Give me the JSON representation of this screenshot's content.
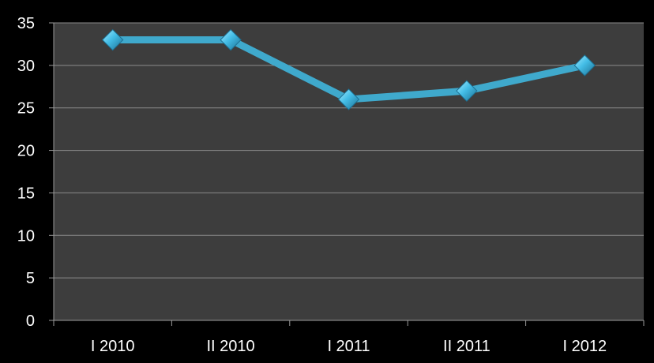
{
  "chart_data": {
    "type": "line",
    "title": "",
    "xlabel": "",
    "ylabel": "",
    "categories": [
      "I 2010",
      "II 2010",
      "I 2011",
      "II 2011",
      "I 2012"
    ],
    "series": [
      {
        "values": [
          33,
          33,
          26,
          27,
          30
        ]
      }
    ],
    "ylim": [
      0,
      35
    ],
    "yticks": [
      "0",
      "5",
      "10",
      "15",
      "20",
      "25",
      "30",
      "35"
    ],
    "grid": true,
    "legend": "none",
    "marker": "diamond",
    "colors": {
      "background": "#000000",
      "plot_area": "#3d3d3d",
      "gridline": "#8c8c8c",
      "axis": "#9a9a9a",
      "line": "#3fa9cc",
      "marker_light": "#a9ecff",
      "marker_mid": "#43bde6",
      "marker_dark": "#1c6f92",
      "text": "#ffffff"
    }
  }
}
